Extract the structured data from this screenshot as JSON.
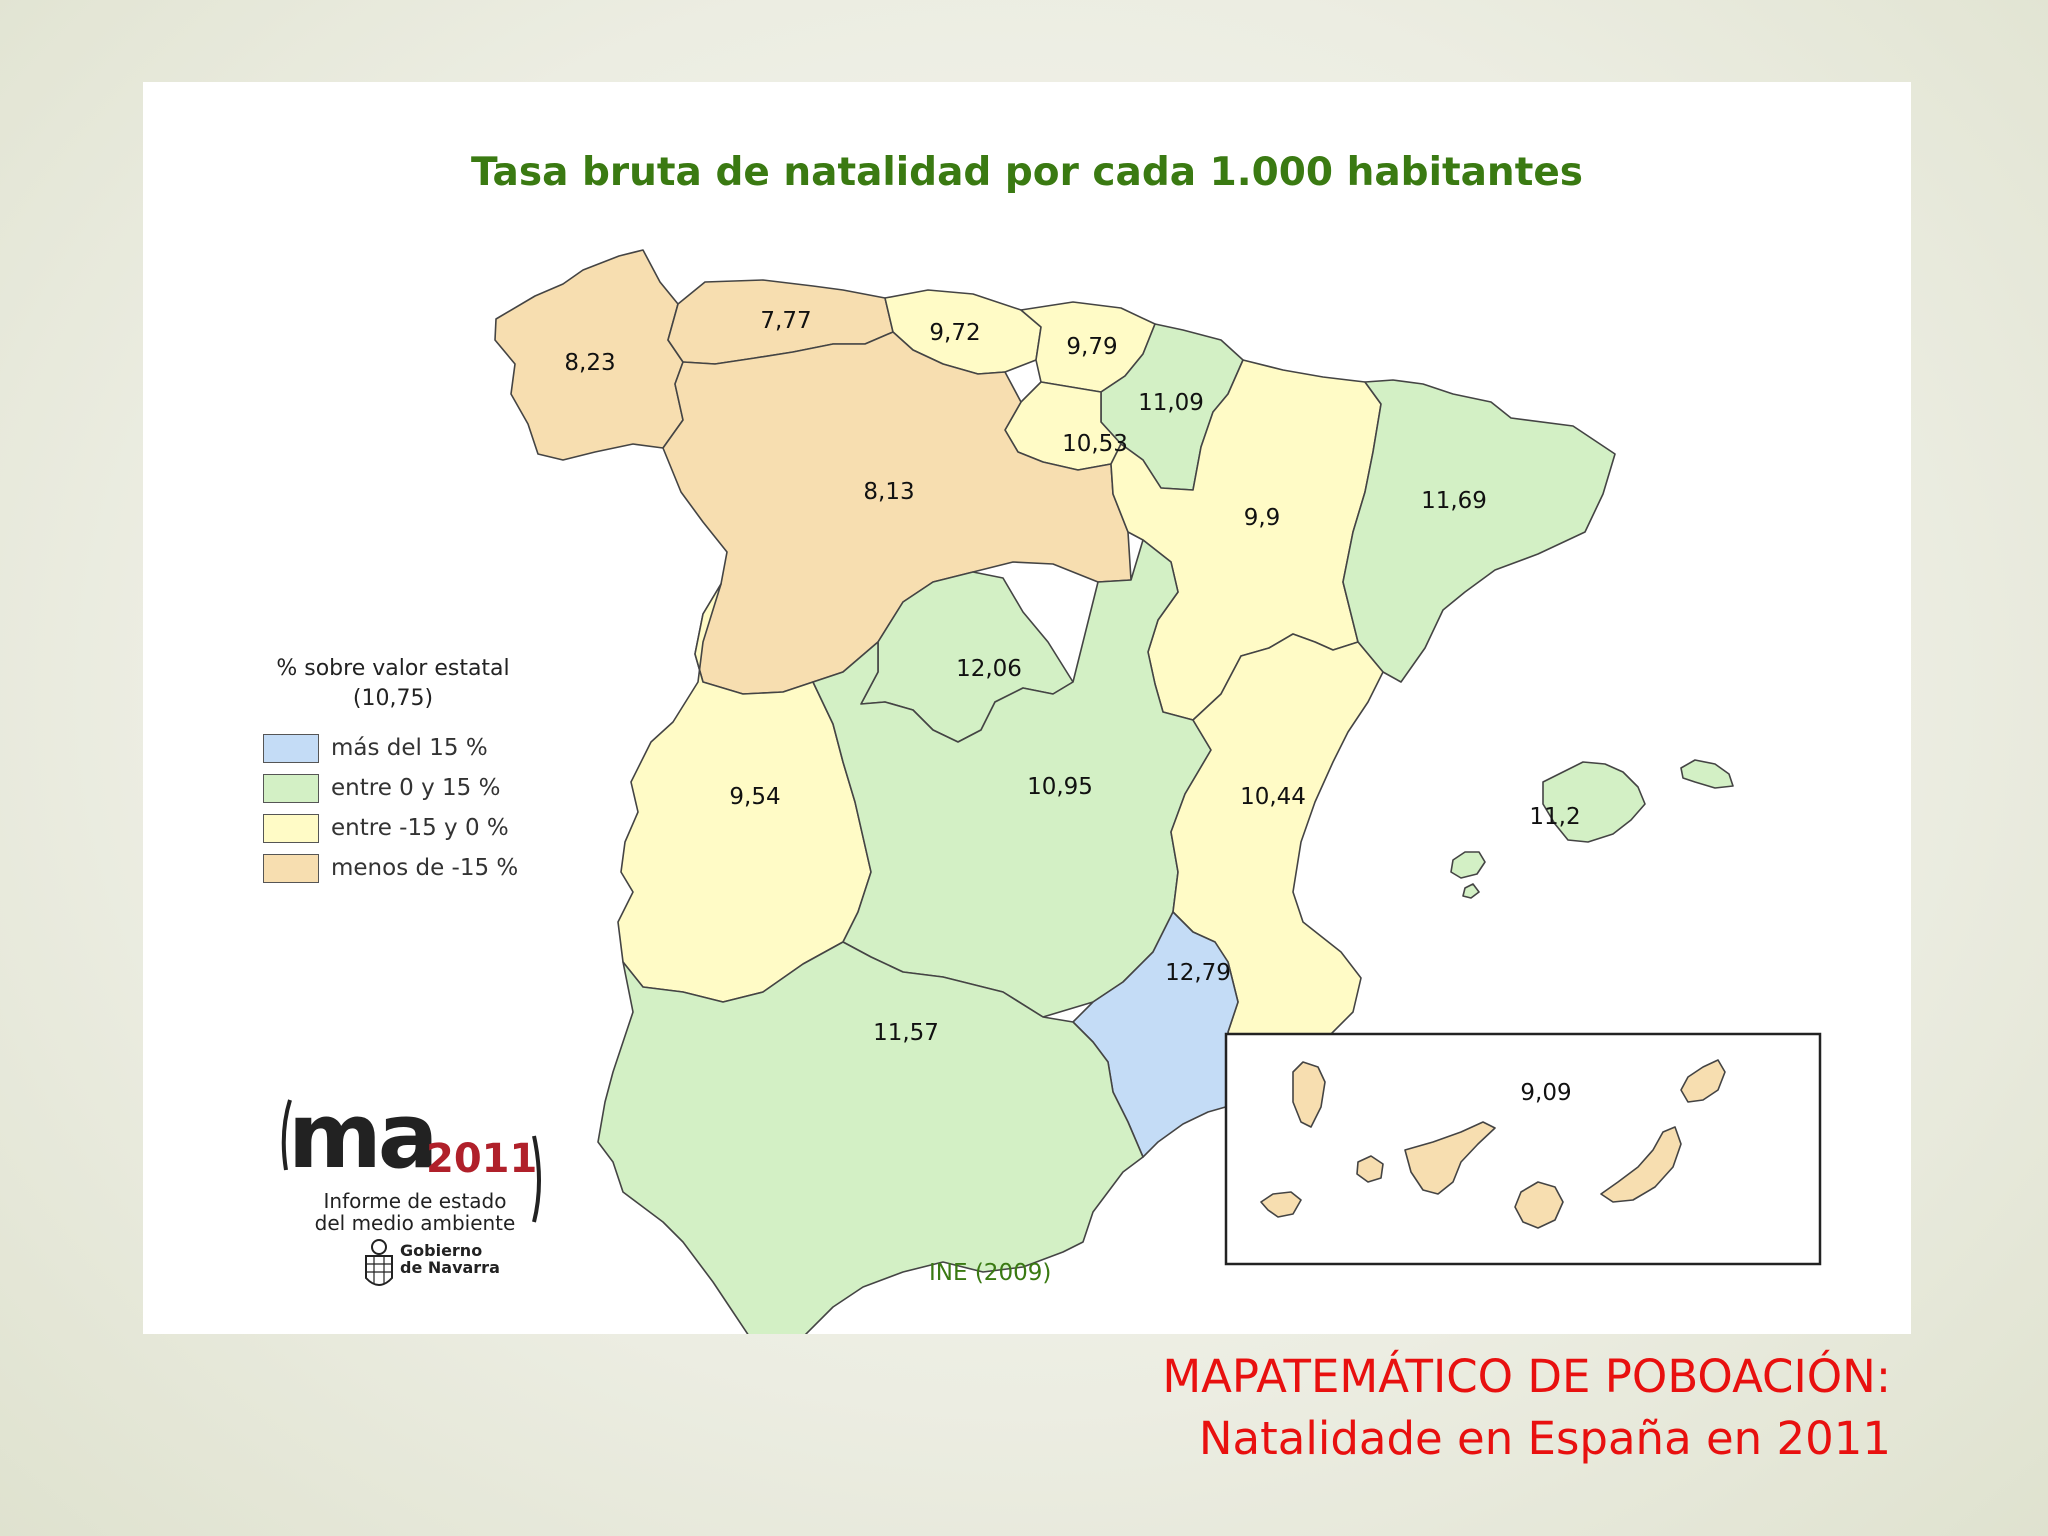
{
  "map": {
    "title": "Tasa bruta de natalidad por cada 1.000 habitantes",
    "source": "INE (2009)",
    "legend": {
      "title_line1": "% sobre valor estatal",
      "title_line2": "(10,75)",
      "items": [
        {
          "label": "más del 15 %",
          "color": "#c4dcf6"
        },
        {
          "label": "entre 0 y 15 %",
          "color": "#d3f0c5"
        },
        {
          "label": "entre -15 y 0 %",
          "color": "#fffbc6"
        },
        {
          "label": "menos de -15 %",
          "color": "#f7deb0"
        }
      ]
    },
    "regions": {
      "galicia": {
        "value": "8,23",
        "category": "menos de -15 %"
      },
      "asturias": {
        "value": "7,77",
        "category": "menos de -15 %"
      },
      "cantabria": {
        "value": "9,72",
        "category": "entre -15 y 0 %"
      },
      "pais_vasco": {
        "value": "9,79",
        "category": "entre -15 y 0 %"
      },
      "navarra": {
        "value": "11,09",
        "category": "entre 0 y 15 %"
      },
      "la_rioja": {
        "value": "10,53",
        "category": "entre -15 y 0 %"
      },
      "castilla_leon": {
        "value": "8,13",
        "category": "menos de -15 %"
      },
      "aragon": {
        "value": "9,9",
        "category": "entre -15 y 0 %"
      },
      "cataluna": {
        "value": "11,69",
        "category": "entre 0 y 15 %"
      },
      "madrid": {
        "value": "12,06",
        "category": "entre 0 y 15 %"
      },
      "extremadura": {
        "value": "9,54",
        "category": "entre -15 y 0 %"
      },
      "castilla_la_mancha": {
        "value": "10,95",
        "category": "entre 0 y 15 %"
      },
      "valencia": {
        "value": "10,44",
        "category": "entre -15 y 0 %"
      },
      "baleares": {
        "value": "11,2",
        "category": "entre 0 y 15 %"
      },
      "murcia": {
        "value": "12,79",
        "category": "más del 15 %"
      },
      "andalucia": {
        "value": "11,57",
        "category": "entre 0 y 15 %"
      },
      "canarias": {
        "value": "9,09",
        "category": "menos de -15 %"
      }
    },
    "logo": {
      "main": "ma",
      "year": "2011",
      "subtitle_line1": "Informe de estado",
      "subtitle_line2": "del medio ambiente",
      "gov_line1": "Gobierno",
      "gov_line2": "de Navarra"
    }
  },
  "caption": {
    "line1": "MAPATEMÁTICO DE POBOACIÓN:",
    "line2": "Natalidade en España en 2011",
    "color": "#e8100f"
  }
}
